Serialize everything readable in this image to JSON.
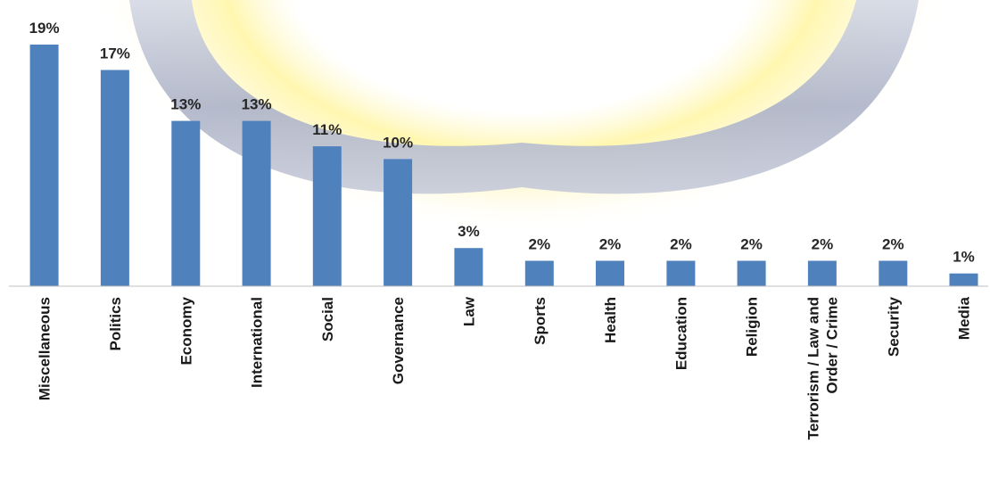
{
  "chart_data": {
    "type": "bar",
    "title": "",
    "xlabel": "",
    "ylabel": "",
    "ylim": [
      0,
      19
    ],
    "grid": false,
    "legend": "none",
    "categories": [
      [
        "Miscellaneous"
      ],
      [
        "Politics"
      ],
      [
        "Economy"
      ],
      [
        "International"
      ],
      [
        "Social"
      ],
      [
        "Governance"
      ],
      [
        "Law"
      ],
      [
        "Sports"
      ],
      [
        "Health"
      ],
      [
        "Education"
      ],
      [
        "Religion"
      ],
      [
        "Terrorism / Law and",
        "Order / Crime"
      ],
      [
        "Security"
      ],
      [
        "Media"
      ]
    ],
    "values": [
      19,
      17,
      13,
      13,
      11,
      10,
      3,
      2,
      2,
      2,
      2,
      2,
      2,
      1
    ],
    "data_labels": [
      "19%",
      "17%",
      "13%",
      "13%",
      "11%",
      "10%",
      "3%",
      "2%",
      "2%",
      "2%",
      "2%",
      "2%",
      "2%",
      "1%"
    ],
    "colors": {
      "bar": "#4f81bd",
      "axis": "#bfbfbf",
      "watermark_ring": "#b9bfd0",
      "watermark_glow": "#fff3a6"
    }
  }
}
